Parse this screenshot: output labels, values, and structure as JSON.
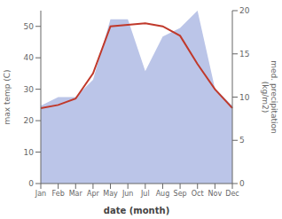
{
  "chart_data": {
    "type": "line",
    "categories": [
      "Jan",
      "Feb",
      "Mar",
      "Apr",
      "May",
      "Jun",
      "Jul",
      "Aug",
      "Sep",
      "Oct",
      "Nov",
      "Dec"
    ],
    "series": [
      {
        "type": "area",
        "axis": "y2",
        "color": "#bbc5e8",
        "values": [
          9,
          10,
          10,
          12,
          19,
          19,
          13,
          17,
          18,
          20,
          11,
          9
        ]
      },
      {
        "type": "line",
        "color": "#c0392b",
        "values": [
          24,
          25,
          27,
          35,
          50,
          50.5,
          51,
          50,
          47,
          38,
          30,
          24
        ]
      }
    ],
    "xlabel": "date (month)",
    "ylabel": "max temp (C)",
    "y2label": "med. precipitation\n(kg/m2)",
    "ylim": [
      0,
      55
    ],
    "yticks": [
      0,
      10,
      20,
      30,
      40,
      50
    ],
    "y2lim": [
      0,
      20
    ],
    "y2ticks": [
      0,
      5,
      10,
      15,
      20
    ],
    "grid": false
  }
}
